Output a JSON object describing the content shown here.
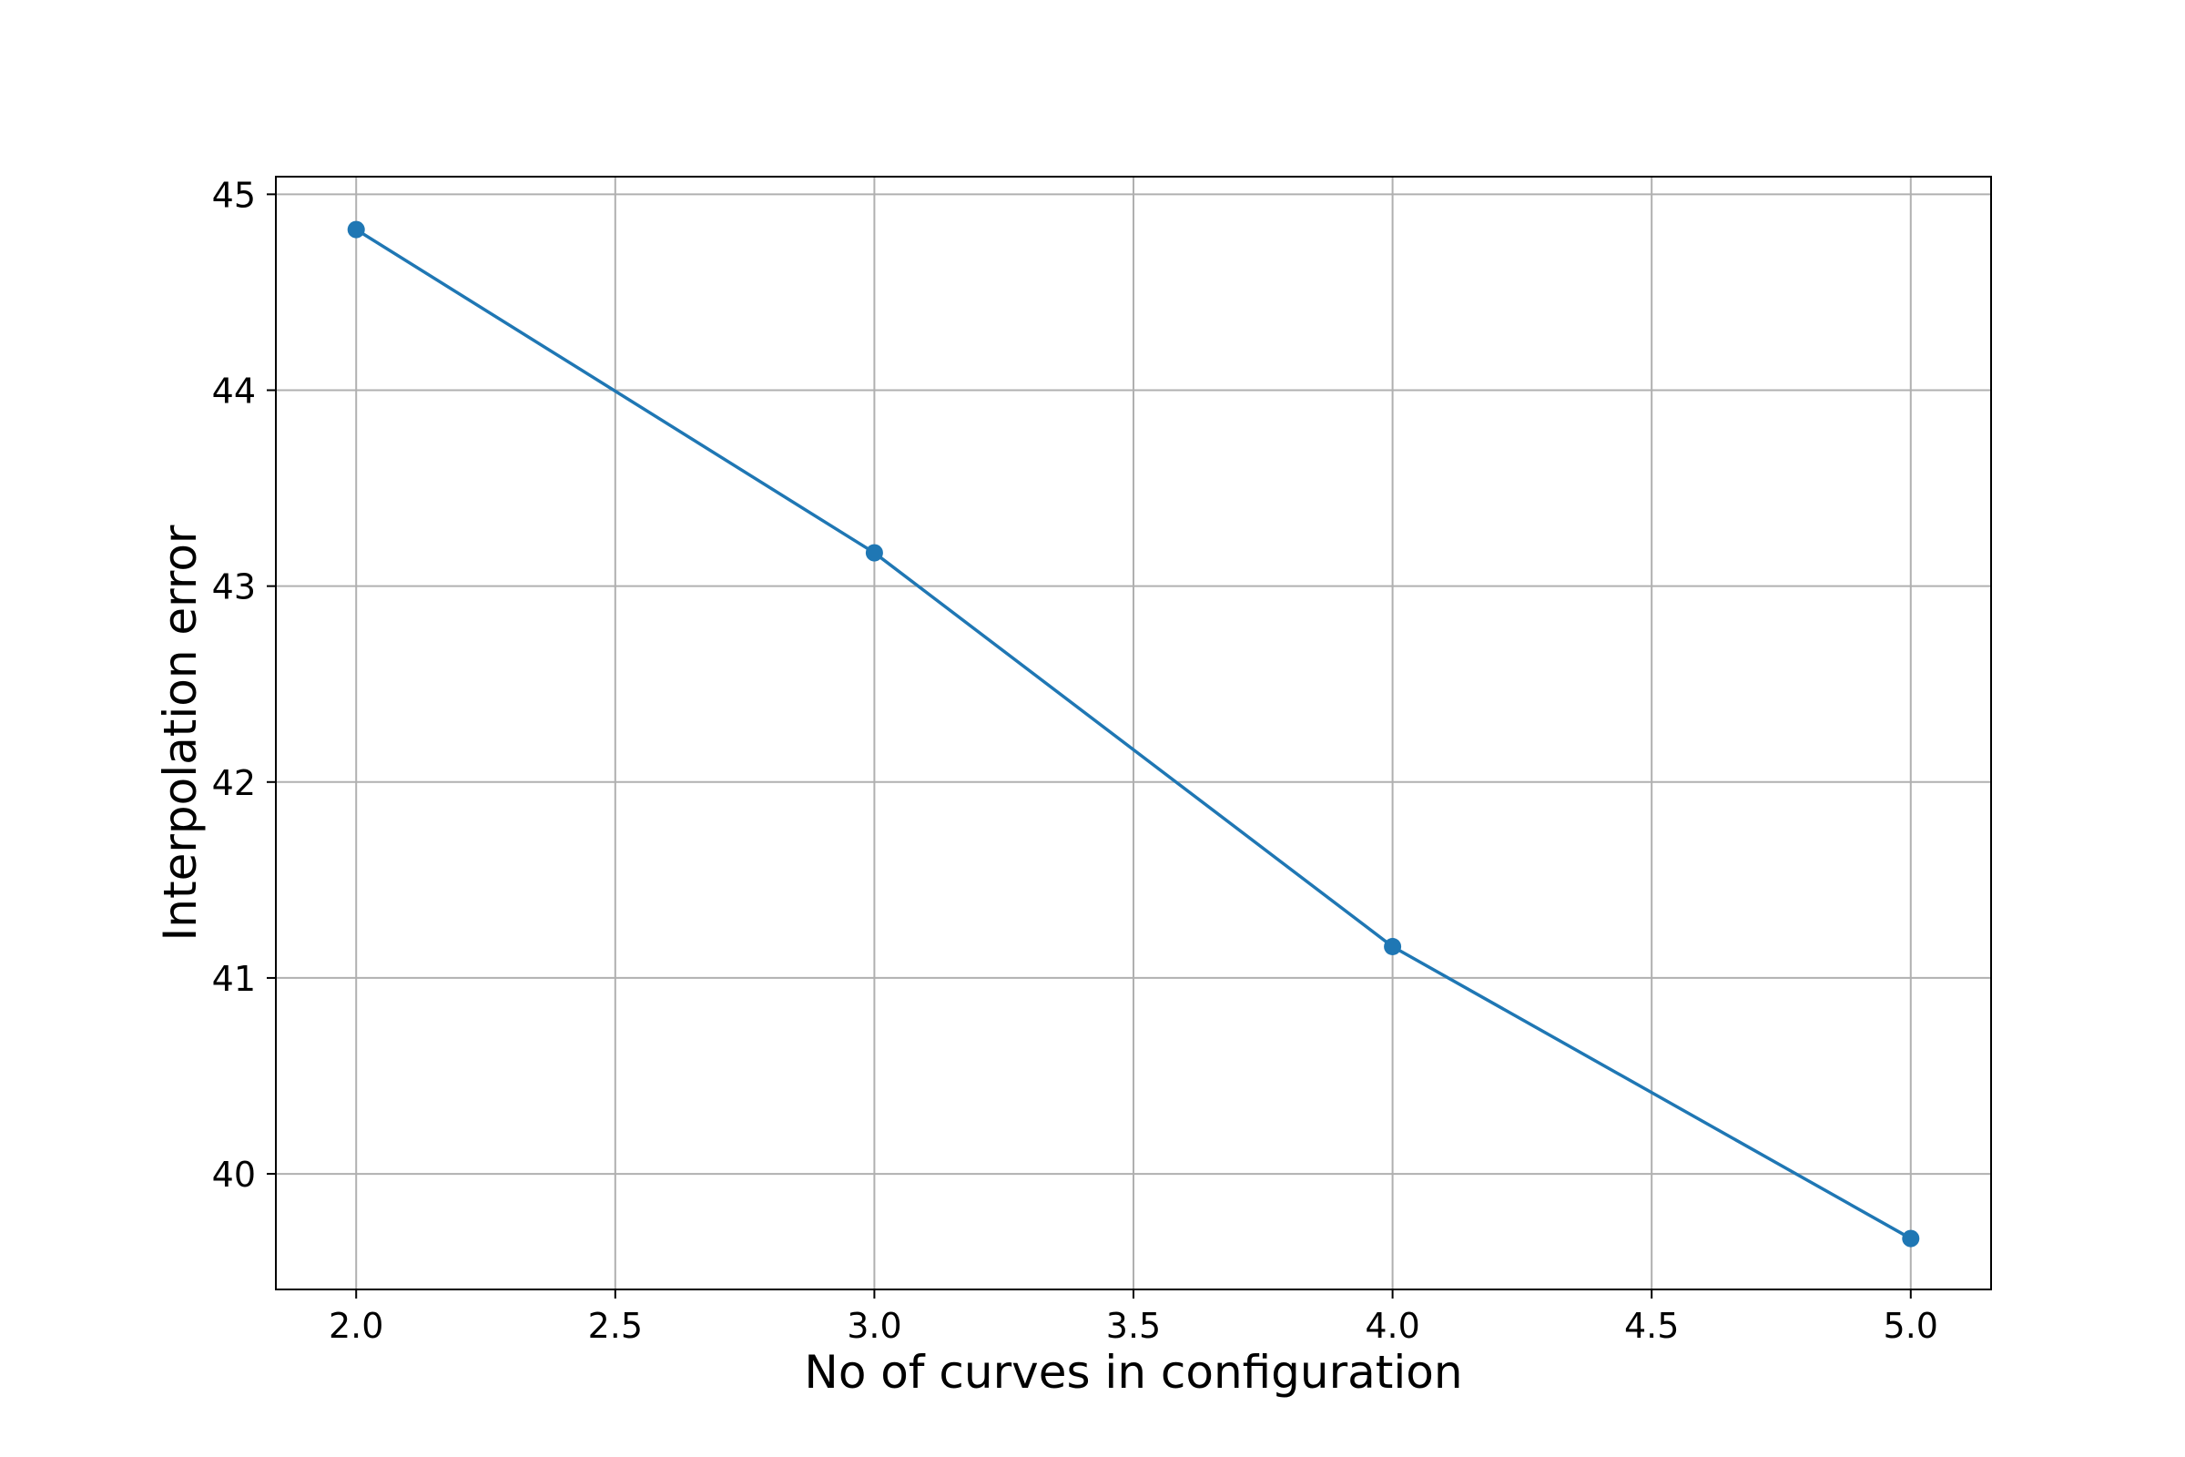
{
  "chart_data": {
    "type": "line",
    "title": "",
    "xlabel": "No of curves in configuration",
    "ylabel": "Interpolation error",
    "x": [
      2.0,
      3.0,
      4.0,
      5.0
    ],
    "series": [
      {
        "values": [
          44.82,
          43.17,
          41.16,
          39.67
        ],
        "color": "#1f77b4",
        "marker": "circle"
      }
    ],
    "xlim": [
      1.845,
      5.155
    ],
    "ylim": [
      39.41,
      45.09
    ],
    "xticks": [
      2.0,
      2.5,
      3.0,
      3.5,
      4.0,
      4.5,
      5.0
    ],
    "xtick_labels": [
      "2.0",
      "2.5",
      "3.0",
      "3.5",
      "4.0",
      "4.5",
      "5.0"
    ],
    "yticks": [
      40,
      41,
      42,
      43,
      44,
      45
    ],
    "ytick_labels": [
      "40",
      "41",
      "42",
      "43",
      "44",
      "45"
    ],
    "grid": true,
    "grid_color": "#b0b0b0"
  }
}
